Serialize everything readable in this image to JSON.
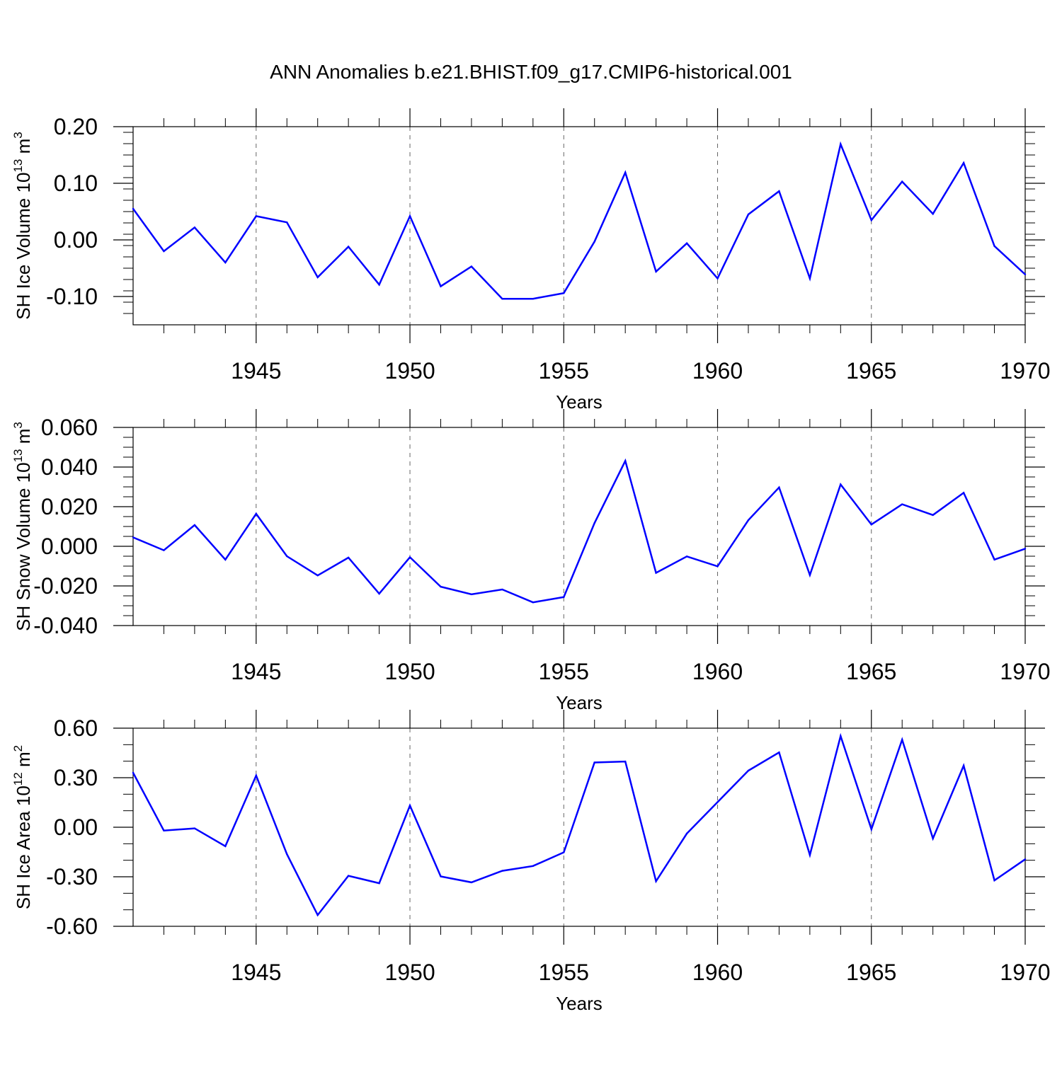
{
  "title": "ANN Anomalies b.e21.BHIST.f09_g17.CMIP6-historical.001",
  "line_color": "#0000ff",
  "chart_data": [
    {
      "type": "line",
      "ylabel_main": "SH Ice Volume 10",
      "ylabel_exp": "13",
      "ylabel_unit": " m",
      "ylabel_unit_exp": "3",
      "xlabel": "Years",
      "xlim": [
        1941,
        1970
      ],
      "ylim": [
        -0.15,
        0.2
      ],
      "yticks": [
        -0.1,
        0.0,
        0.1,
        0.2
      ],
      "ytick_labels": [
        "-0.10",
        "0.00",
        "0.10",
        "0.20"
      ],
      "yminor_step": 0.02,
      "xticks": [
        1945,
        1950,
        1955,
        1960,
        1965,
        1970
      ],
      "xtick_labels": [
        "1945",
        "1950",
        "1955",
        "1960",
        "1965",
        "1970"
      ],
      "x": [
        1941,
        1942,
        1943,
        1944,
        1945,
        1946,
        1947,
        1948,
        1949,
        1950,
        1951,
        1952,
        1953,
        1954,
        1955,
        1956,
        1957,
        1958,
        1959,
        1960,
        1961,
        1962,
        1963,
        1964,
        1965,
        1966,
        1967,
        1968,
        1969,
        1970
      ],
      "y": [
        0.055,
        -0.02,
        0.022,
        -0.04,
        0.042,
        0.031,
        -0.066,
        -0.012,
        -0.079,
        0.042,
        -0.082,
        -0.047,
        -0.104,
        -0.104,
        -0.094,
        -0.003,
        0.119,
        -0.056,
        -0.006,
        -0.068,
        0.045,
        0.086,
        -0.068,
        0.169,
        0.035,
        0.103,
        0.046,
        0.136,
        -0.011,
        -0.061
      ]
    },
    {
      "type": "line",
      "ylabel_main": "SH Snow Volume 10",
      "ylabel_exp": "13",
      "ylabel_unit": " m",
      "ylabel_unit_exp": "3",
      "xlabel": "Years",
      "xlim": [
        1941,
        1970
      ],
      "ylim": [
        -0.04,
        0.06
      ],
      "yticks": [
        -0.04,
        -0.02,
        0.0,
        0.02,
        0.04,
        0.06
      ],
      "ytick_labels": [
        "-0.040",
        "-0.020",
        "0.000",
        "0.020",
        "0.040",
        "0.060"
      ],
      "yminor_step": 0.005,
      "xticks": [
        1945,
        1950,
        1955,
        1960,
        1965,
        1970
      ],
      "xtick_labels": [
        "1945",
        "1950",
        "1955",
        "1960",
        "1965",
        "1970"
      ],
      "x": [
        1941,
        1942,
        1943,
        1944,
        1945,
        1946,
        1947,
        1948,
        1949,
        1950,
        1951,
        1952,
        1953,
        1954,
        1955,
        1956,
        1957,
        1958,
        1959,
        1960,
        1961,
        1962,
        1963,
        1964,
        1965,
        1966,
        1967,
        1968,
        1969,
        1970
      ],
      "y": [
        0.0045,
        -0.002,
        0.0107,
        -0.0067,
        0.0164,
        -0.005,
        -0.0147,
        -0.0057,
        -0.0239,
        -0.0055,
        -0.0204,
        -0.0242,
        -0.0218,
        -0.0283,
        -0.0256,
        0.0117,
        0.0431,
        -0.0134,
        -0.0051,
        -0.0101,
        0.0132,
        0.0297,
        -0.0145,
        0.0312,
        0.011,
        0.0212,
        0.0158,
        0.027,
        -0.0067,
        -0.0012
      ]
    },
    {
      "type": "line",
      "ylabel_main": "SH Ice Area 10",
      "ylabel_exp": "12",
      "ylabel_unit": " m",
      "ylabel_unit_exp": "2",
      "xlabel": "Years",
      "xlim": [
        1941,
        1970
      ],
      "ylim": [
        -0.6,
        0.6
      ],
      "yticks": [
        -0.6,
        -0.3,
        0.0,
        0.3,
        0.6
      ],
      "ytick_labels": [
        "-0.60",
        "-0.30",
        "0.00",
        "0.30",
        "0.60"
      ],
      "yminor_step": 0.1,
      "xticks": [
        1945,
        1950,
        1955,
        1960,
        1965,
        1970
      ],
      "xtick_labels": [
        "1945",
        "1950",
        "1955",
        "1960",
        "1965",
        "1970"
      ],
      "x": [
        1941,
        1942,
        1943,
        1944,
        1945,
        1946,
        1947,
        1948,
        1949,
        1950,
        1951,
        1952,
        1953,
        1954,
        1955,
        1956,
        1957,
        1958,
        1959,
        1960,
        1961,
        1962,
        1963,
        1964,
        1965,
        1966,
        1967,
        1968,
        1969,
        1970
      ],
      "y": [
        0.33,
        -0.02,
        -0.007,
        -0.115,
        0.313,
        -0.163,
        -0.532,
        -0.294,
        -0.339,
        0.131,
        -0.298,
        -0.334,
        -0.264,
        -0.235,
        -0.152,
        0.392,
        0.398,
        -0.327,
        -0.038,
        0.152,
        0.343,
        0.453,
        -0.168,
        0.552,
        -0.012,
        0.53,
        -0.068,
        0.373,
        -0.322,
        -0.194
      ]
    }
  ]
}
